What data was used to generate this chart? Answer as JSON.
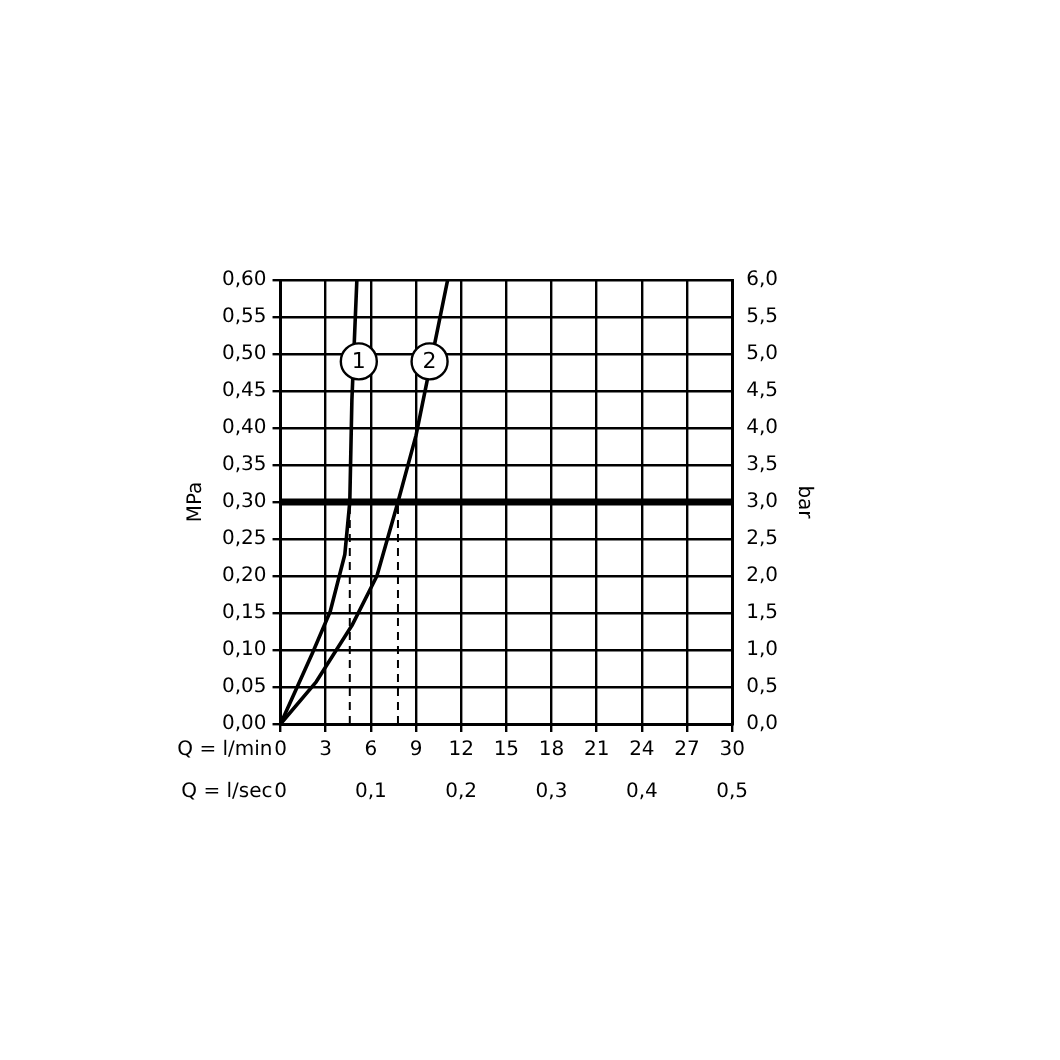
{
  "chart_data": {
    "type": "line",
    "xlabel": "Q = l/min",
    "x2label": "Q = l/sec",
    "ylabel": "MPa",
    "y2label": "bar",
    "xlim": [
      0,
      30
    ],
    "xticks": [
      0,
      3,
      6,
      9,
      12,
      15,
      18,
      21,
      24,
      27,
      30
    ],
    "x2lim": [
      0,
      0.5
    ],
    "x2ticks": [
      0,
      {
        "value": 0.1,
        "label": "0,1"
      },
      {
        "value": 0.2,
        "label": "0,2"
      },
      {
        "value": 0.3,
        "label": "0,3"
      },
      {
        "value": 0.4,
        "label": "0,4"
      },
      {
        "value": 0.5,
        "label": "0,5"
      }
    ],
    "ylim": [
      0,
      0.6
    ],
    "yticks": [
      {
        "value": 0,
        "label": "0,00"
      },
      {
        "value": 0.05,
        "label": "0,05"
      },
      {
        "value": 0.1,
        "label": "0,10"
      },
      {
        "value": 0.15,
        "label": "0,15"
      },
      {
        "value": 0.2,
        "label": "0,20"
      },
      {
        "value": 0.25,
        "label": "0,25"
      },
      {
        "value": 0.3,
        "label": "0,30"
      },
      {
        "value": 0.35,
        "label": "0,35"
      },
      {
        "value": 0.4,
        "label": "0,40"
      },
      {
        "value": 0.45,
        "label": "0,45"
      },
      {
        "value": 0.5,
        "label": "0,50"
      },
      {
        "value": 0.55,
        "label": "0,55"
      },
      {
        "value": 0.6,
        "label": "0,60"
      }
    ],
    "y2lim": [
      0,
      6
    ],
    "y2ticks": [
      {
        "value": 0,
        "label": "0,0"
      },
      {
        "value": 0.5,
        "label": "0,5"
      },
      {
        "value": 1,
        "label": "1,0"
      },
      {
        "value": 1.5,
        "label": "1,5"
      },
      {
        "value": 2,
        "label": "2,0"
      },
      {
        "value": 2.5,
        "label": "2,5"
      },
      {
        "value": 3,
        "label": "3,0"
      },
      {
        "value": 3.5,
        "label": "3,5"
      },
      {
        "value": 4,
        "label": "4,0"
      },
      {
        "value": 4.5,
        "label": "4,5"
      },
      {
        "value": 5,
        "label": "5,0"
      },
      {
        "value": 5.5,
        "label": "5,5"
      },
      {
        "value": 6,
        "label": "6,0"
      }
    ],
    "grid": true,
    "series": [
      {
        "color": "#000000",
        "x": [
          0,
          2.1,
          3.3,
          4.27,
          4.6,
          4.74,
          5.07
        ],
        "values": [
          0,
          0.095,
          0.152,
          0.229,
          0.3,
          0.438,
          0.6
        ]
      },
      {
        "color": "#000000",
        "x": [
          0,
          2.37,
          4.74,
          6.4,
          7.8,
          9.0,
          11.1
        ],
        "values": [
          0,
          0.057,
          0.133,
          0.2,
          0.3,
          0.39,
          0.6
        ]
      },
      {
        "color": "#000000",
        "line_style": "dashed",
        "x": [
          4.6,
          4.6
        ],
        "values": [
          0,
          0.3
        ]
      },
      {
        "color": "#000000",
        "line_style": "dashed",
        "x": [
          7.8,
          7.8
        ],
        "values": [
          0,
          0.3
        ]
      }
    ],
    "ref_lines": [
      {
        "axis": "y",
        "value": 0.3,
        "color": "#000000"
      }
    ],
    "annotations": [
      {
        "text": "1",
        "x": 5.2,
        "y": 0.49
      },
      {
        "text": "2",
        "x": 9.9,
        "y": 0.49
      }
    ]
  }
}
